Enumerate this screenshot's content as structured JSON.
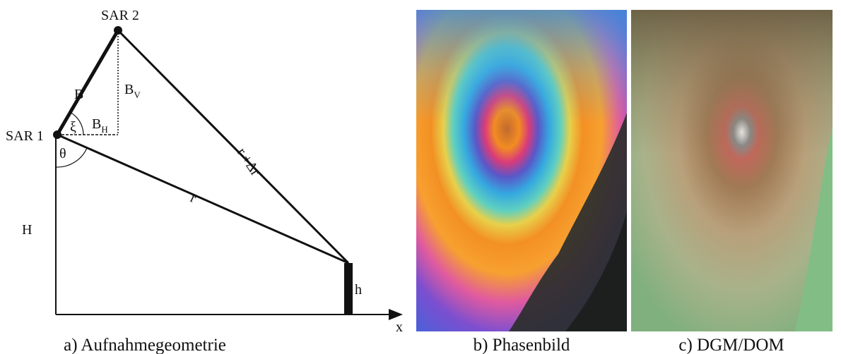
{
  "geometry": {
    "sar2": "SAR 2",
    "sar1": "SAR 1",
    "baseline": "B",
    "baseline_v": {
      "text": "B",
      "sub": "V"
    },
    "baseline_h": {
      "text": "B",
      "sub": "H"
    },
    "xi": "ξ",
    "theta": "θ",
    "range_delta": "r +Δr",
    "range": "r",
    "height": "H",
    "object_height": "h",
    "x_axis": "x"
  },
  "captions": [
    "a) Aufnahmegeometrie",
    "b) Phasenbild",
    "c) DGM/DOM"
  ]
}
